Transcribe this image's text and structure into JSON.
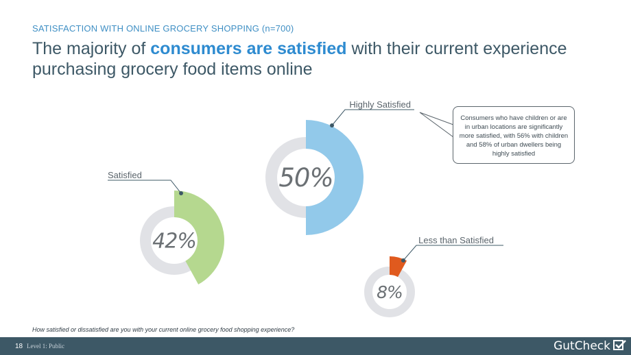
{
  "header": {
    "eyebrow": "SATISFACTION WITH ONLINE GROCERY SHOPPING (n=700)",
    "title_before": "The majority of ",
    "title_highlight": "consumers are satisfied",
    "title_after": " with their current experience purchasing grocery food items online"
  },
  "chart_data": {
    "type": "pie",
    "title": "",
    "units": "%",
    "categories": [
      "Satisfied",
      "Highly Satisfied",
      "Less than Satisfied"
    ],
    "values": [
      42,
      50,
      8
    ],
    "value_labels": [
      "42%",
      "50%",
      "8%"
    ],
    "colors": [
      "#b5d88f",
      "#92c9ea",
      "#e05a1e"
    ],
    "track_color": "#e1e2e6",
    "legend": "none"
  },
  "callout": {
    "text": "Consumers who have children or are in urban locations are significantly more satisfied, with 56% with children and 58% of urban dwellers being highly satisfied"
  },
  "question": "How satisfied or dissatisfied are you with your current online grocery food shopping experience?",
  "footer": {
    "page_number": "18",
    "classification": "Level 1: Public",
    "brand": "GutCheck"
  }
}
